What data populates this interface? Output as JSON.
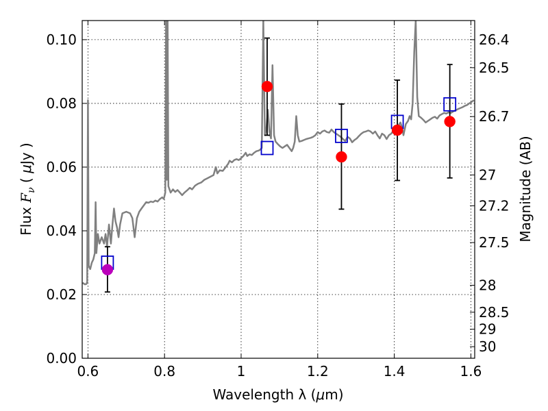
{
  "chart_data": {
    "type": "scatter",
    "xlabel_prefix": "Wavelength  λ (",
    "xlabel_unit_mu": "μ",
    "xlabel_suffix": "m)",
    "ylabel_prefix": "Flux  ",
    "ylabel_var": "F",
    "ylabel_sub": "ν",
    "ylabel_open": "  ( ",
    "ylabel_mu": "μ",
    "ylabel_unit": "Jy )",
    "y2label": "Magnitude (AB)",
    "xlim": [
      0.585,
      1.61
    ],
    "ylim": [
      0.0,
      0.106
    ],
    "grid": true,
    "x_ticks": [
      {
        "value": 0.6,
        "label": "0.6"
      },
      {
        "value": 0.8,
        "label": "0.8"
      },
      {
        "value": 1.0,
        "label": "1"
      },
      {
        "value": 1.2,
        "label": "1.2"
      },
      {
        "value": 1.4,
        "label": "1.4"
      },
      {
        "value": 1.6,
        "label": "1.6"
      }
    ],
    "y_ticks": [
      {
        "value": 0.0,
        "label": "0.00"
      },
      {
        "value": 0.02,
        "label": "0.02"
      },
      {
        "value": 0.04,
        "label": "0.04"
      },
      {
        "value": 0.06,
        "label": "0.06"
      },
      {
        "value": 0.08,
        "label": "0.08"
      },
      {
        "value": 0.1,
        "label": "0.10"
      }
    ],
    "y2_ticks": [
      {
        "label": "26.4",
        "value": 26.4
      },
      {
        "label": "26.5",
        "value": 26.5
      },
      {
        "label": "26.7",
        "value": 26.7
      },
      {
        "label": "27",
        "value": 27.0
      },
      {
        "label": "27.2",
        "value": 27.2
      },
      {
        "label": "27.5",
        "value": 27.5
      },
      {
        "label": "28",
        "value": 28.0
      },
      {
        "label": "28.5",
        "value": 28.5
      },
      {
        "label": "29",
        "value": 29.0
      },
      {
        "label": "30",
        "value": 30.0
      }
    ],
    "observed": [
      {
        "x": 0.651,
        "y": 0.0278,
        "err_low": 0.0208,
        "err_high": 0.035,
        "color": "#bb00bb"
      },
      {
        "x": 1.068,
        "y": 0.0853,
        "err_low": 0.07,
        "err_high": 0.1005,
        "color": "#ff0000"
      },
      {
        "x": 1.262,
        "y": 0.0632,
        "err_low": 0.0468,
        "err_high": 0.0798,
        "color": "#ff0000"
      },
      {
        "x": 1.408,
        "y": 0.0716,
        "err_low": 0.0558,
        "err_high": 0.0873,
        "color": "#ff0000"
      },
      {
        "x": 1.545,
        "y": 0.0743,
        "err_low": 0.0566,
        "err_high": 0.0922,
        "color": "#ff0000"
      }
    ],
    "model_bandpass": [
      {
        "x": 0.651,
        "y": 0.03
      },
      {
        "x": 1.068,
        "y": 0.066
      },
      {
        "x": 1.262,
        "y": 0.0698
      },
      {
        "x": 1.408,
        "y": 0.0742
      },
      {
        "x": 1.545,
        "y": 0.0797
      }
    ],
    "model_spectrum": [
      [
        0.586,
        0.0237
      ],
      [
        0.592,
        0.0232
      ],
      [
        0.596,
        0.0233
      ],
      [
        0.598,
        0.024
      ],
      [
        0.6,
        0.081
      ],
      [
        0.602,
        0.029
      ],
      [
        0.606,
        0.028
      ],
      [
        0.61,
        0.03
      ],
      [
        0.614,
        0.031
      ],
      [
        0.618,
        0.033
      ],
      [
        0.62,
        0.049
      ],
      [
        0.622,
        0.033
      ],
      [
        0.626,
        0.039
      ],
      [
        0.63,
        0.036
      ],
      [
        0.636,
        0.038
      ],
      [
        0.642,
        0.036
      ],
      [
        0.646,
        0.039
      ],
      [
        0.65,
        0.035
      ],
      [
        0.655,
        0.042
      ],
      [
        0.66,
        0.036
      ],
      [
        0.664,
        0.042
      ],
      [
        0.668,
        0.047
      ],
      [
        0.672,
        0.043
      ],
      [
        0.676,
        0.041
      ],
      [
        0.68,
        0.038
      ],
      [
        0.684,
        0.042
      ],
      [
        0.69,
        0.0455
      ],
      [
        0.7,
        0.046
      ],
      [
        0.71,
        0.0455
      ],
      [
        0.716,
        0.044
      ],
      [
        0.722,
        0.038
      ],
      [
        0.728,
        0.044
      ],
      [
        0.734,
        0.046
      ],
      [
        0.74,
        0.047
      ],
      [
        0.746,
        0.048
      ],
      [
        0.752,
        0.049
      ],
      [
        0.758,
        0.0488
      ],
      [
        0.764,
        0.0492
      ],
      [
        0.77,
        0.049
      ],
      [
        0.776,
        0.0495
      ],
      [
        0.782,
        0.0492
      ],
      [
        0.788,
        0.05
      ],
      [
        0.794,
        0.0505
      ],
      [
        0.798,
        0.05
      ],
      [
        0.802,
        0.052
      ],
      [
        0.804,
        0.106
      ],
      [
        0.806,
        0.056
      ],
      [
        0.808,
        0.106
      ],
      [
        0.81,
        0.054
      ],
      [
        0.816,
        0.052
      ],
      [
        0.822,
        0.053
      ],
      [
        0.828,
        0.0522
      ],
      [
        0.834,
        0.0528
      ],
      [
        0.84,
        0.052
      ],
      [
        0.846,
        0.0512
      ],
      [
        0.852,
        0.052
      ],
      [
        0.86,
        0.0528
      ],
      [
        0.866,
        0.0535
      ],
      [
        0.872,
        0.053
      ],
      [
        0.88,
        0.0542
      ],
      [
        0.888,
        0.0548
      ],
      [
        0.896,
        0.0552
      ],
      [
        0.904,
        0.056
      ],
      [
        0.912,
        0.0565
      ],
      [
        0.92,
        0.057
      ],
      [
        0.928,
        0.0575
      ],
      [
        0.934,
        0.06
      ],
      [
        0.938,
        0.058
      ],
      [
        0.944,
        0.059
      ],
      [
        0.952,
        0.0588
      ],
      [
        0.96,
        0.06
      ],
      [
        0.966,
        0.061
      ],
      [
        0.97,
        0.062
      ],
      [
        0.976,
        0.0615
      ],
      [
        0.982,
        0.0622
      ],
      [
        0.988,
        0.0625
      ],
      [
        0.994,
        0.0622
      ],
      [
        1.0,
        0.0628
      ],
      [
        1.006,
        0.0635
      ],
      [
        1.012,
        0.0645
      ],
      [
        1.016,
        0.0635
      ],
      [
        1.022,
        0.064
      ],
      [
        1.028,
        0.0638
      ],
      [
        1.034,
        0.0645
      ],
      [
        1.04,
        0.065
      ],
      [
        1.046,
        0.0652
      ],
      [
        1.05,
        0.0655
      ],
      [
        1.054,
        0.066
      ],
      [
        1.058,
        0.106
      ],
      [
        1.062,
        0.07
      ],
      [
        1.066,
        0.072
      ],
      [
        1.07,
        0.078
      ],
      [
        1.074,
        0.071
      ],
      [
        1.078,
        0.069
      ],
      [
        1.082,
        0.092
      ],
      [
        1.086,
        0.07
      ],
      [
        1.09,
        0.068
      ],
      [
        1.096,
        0.0672
      ],
      [
        1.102,
        0.0665
      ],
      [
        1.108,
        0.066
      ],
      [
        1.114,
        0.0665
      ],
      [
        1.12,
        0.067
      ],
      [
        1.126,
        0.066
      ],
      [
        1.132,
        0.065
      ],
      [
        1.136,
        0.066
      ],
      [
        1.14,
        0.068
      ],
      [
        1.144,
        0.076
      ],
      [
        1.148,
        0.07
      ],
      [
        1.152,
        0.068
      ],
      [
        1.158,
        0.0682
      ],
      [
        1.164,
        0.0685
      ],
      [
        1.17,
        0.0688
      ],
      [
        1.176,
        0.069
      ],
      [
        1.182,
        0.0692
      ],
      [
        1.188,
        0.0695
      ],
      [
        1.194,
        0.07
      ],
      [
        1.2,
        0.071
      ],
      [
        1.206,
        0.0705
      ],
      [
        1.212,
        0.0712
      ],
      [
        1.218,
        0.0715
      ],
      [
        1.224,
        0.071
      ],
      [
        1.23,
        0.0708
      ],
      [
        1.236,
        0.0718
      ],
      [
        1.242,
        0.071
      ],
      [
        1.248,
        0.0705
      ],
      [
        1.254,
        0.07
      ],
      [
        1.26,
        0.0695
      ],
      [
        1.266,
        0.0688
      ],
      [
        1.272,
        0.0682
      ],
      [
        1.278,
        0.0695
      ],
      [
        1.284,
        0.069
      ],
      [
        1.29,
        0.0678
      ],
      [
        1.296,
        0.0685
      ],
      [
        1.302,
        0.069
      ],
      [
        1.308,
        0.0698
      ],
      [
        1.314,
        0.0705
      ],
      [
        1.32,
        0.071
      ],
      [
        1.326,
        0.0712
      ],
      [
        1.332,
        0.0715
      ],
      [
        1.338,
        0.0712
      ],
      [
        1.344,
        0.0705
      ],
      [
        1.35,
        0.0712
      ],
      [
        1.356,
        0.07
      ],
      [
        1.362,
        0.069
      ],
      [
        1.368,
        0.0705
      ],
      [
        1.374,
        0.07
      ],
      [
        1.38,
        0.0688
      ],
      [
        1.386,
        0.07
      ],
      [
        1.392,
        0.0705
      ],
      [
        1.398,
        0.0715
      ],
      [
        1.404,
        0.072
      ],
      [
        1.41,
        0.073
      ],
      [
        1.416,
        0.074
      ],
      [
        1.42,
        0.0725
      ],
      [
        1.424,
        0.07
      ],
      [
        1.43,
        0.0735
      ],
      [
        1.436,
        0.0745
      ],
      [
        1.44,
        0.076
      ],
      [
        1.444,
        0.075
      ],
      [
        1.448,
        0.08
      ],
      [
        1.452,
        0.096
      ],
      [
        1.456,
        0.106
      ],
      [
        1.46,
        0.082
      ],
      [
        1.464,
        0.076
      ],
      [
        1.47,
        0.0755
      ],
      [
        1.476,
        0.0748
      ],
      [
        1.482,
        0.074
      ],
      [
        1.488,
        0.0745
      ],
      [
        1.494,
        0.075
      ],
      [
        1.5,
        0.0755
      ],
      [
        1.506,
        0.0758
      ],
      [
        1.512,
        0.0752
      ],
      [
        1.518,
        0.0762
      ],
      [
        1.524,
        0.0766
      ],
      [
        1.53,
        0.077
      ],
      [
        1.536,
        0.0768
      ],
      [
        1.542,
        0.0772
      ],
      [
        1.548,
        0.077
      ],
      [
        1.554,
        0.0775
      ],
      [
        1.56,
        0.0778
      ],
      [
        1.566,
        0.0782
      ],
      [
        1.572,
        0.0785
      ],
      [
        1.578,
        0.0788
      ],
      [
        1.584,
        0.0792
      ],
      [
        1.59,
        0.0795
      ],
      [
        1.596,
        0.08
      ],
      [
        1.602,
        0.0805
      ],
      [
        1.608,
        0.081
      ]
    ],
    "colors": {
      "spectrum": "#808080",
      "bandpass_marker": "#0000cc",
      "error_bar": "#000000",
      "grid": "#000000"
    }
  }
}
